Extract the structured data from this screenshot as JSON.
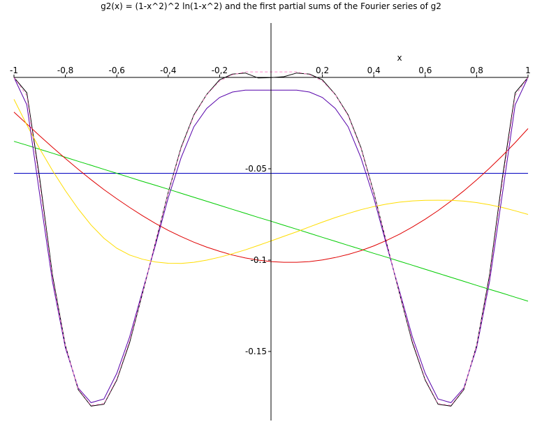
{
  "chart_data": {
    "type": "line",
    "title": "g2(x) = (1-x^2)^2 ln(1-x^2) and the first partial sums of the Fourier series of g2",
    "xlabel": "x",
    "ylabel": "",
    "xlim": [
      -1,
      1
    ],
    "ylim": [
      -0.185,
      0.02
    ],
    "grid": false,
    "x_ticks": [
      {
        "value": -1,
        "label": "-1"
      },
      {
        "value": -0.8,
        "label": "-0,8"
      },
      {
        "value": -0.6,
        "label": "-0,6"
      },
      {
        "value": -0.4,
        "label": "-0,4"
      },
      {
        "value": -0.2,
        "label": "-0,2"
      },
      {
        "value": 0.2,
        "label": "0,2"
      },
      {
        "value": 0.4,
        "label": "0,4"
      },
      {
        "value": 0.6,
        "label": "0,6"
      },
      {
        "value": 0.8,
        "label": "0,8"
      },
      {
        "value": 1,
        "label": "1"
      }
    ],
    "y_ticks": [
      {
        "value": -0.05,
        "label": "-0.05"
      },
      {
        "value": -0.1,
        "label": "-0.1"
      },
      {
        "value": -0.15,
        "label": "-0.15"
      }
    ],
    "x": [
      -1,
      -0.95,
      -0.9,
      -0.85,
      -0.8,
      -0.75,
      -0.7,
      -0.65,
      -0.6,
      -0.55,
      -0.5,
      -0.45,
      -0.4,
      -0.35,
      -0.3,
      -0.25,
      -0.2,
      -0.15,
      -0.1,
      -0.05,
      0,
      0.05,
      0.1,
      0.15,
      0.2,
      0.25,
      0.3,
      0.35,
      0.4,
      0.45,
      0.5,
      0.55,
      0.6,
      0.65,
      0.7,
      0.75,
      0.8,
      0.85,
      0.9,
      0.95,
      1
    ],
    "series": [
      {
        "color": "#000000",
        "dash": "",
        "values": [
          0.0,
          -0.0084,
          -0.0551,
          -0.1084,
          -0.1467,
          -0.1709,
          -0.1799,
          -0.1789,
          -0.1657,
          -0.1451,
          -0.1183,
          -0.0908,
          -0.0631,
          -0.0384,
          -0.0205,
          -0.0093,
          -0.0013,
          0.0018,
          0.0024,
          -0.0003,
          -0.0001,
          0.0004,
          0.0024,
          0.0018,
          -0.0013,
          -0.0093,
          -0.0205,
          -0.0384,
          -0.0631,
          -0.0908,
          -0.1183,
          -0.1451,
          -0.1657,
          -0.1789,
          -0.1799,
          -0.1709,
          -0.1467,
          -0.1084,
          -0.0551,
          -0.0084,
          0.0
        ]
      },
      {
        "color": "#0000c0",
        "dash": "",
        "values": [
          -0.0525,
          -0.0525,
          -0.0525,
          -0.0525,
          -0.0525,
          -0.0525,
          -0.0525,
          -0.0525,
          -0.0525,
          -0.0525,
          -0.0525,
          -0.0525,
          -0.0525,
          -0.0525,
          -0.0525,
          -0.0525,
          -0.0525,
          -0.0525,
          -0.0525,
          -0.0525,
          -0.0525,
          -0.0525,
          -0.0525,
          -0.0525,
          -0.0525,
          -0.0525,
          -0.0525,
          -0.0525,
          -0.0525,
          -0.0525,
          -0.0525,
          -0.0525,
          -0.0525,
          -0.0525,
          -0.0525,
          -0.0525,
          -0.0525,
          -0.0525,
          -0.0525,
          -0.0525,
          -0.0525
        ]
      },
      {
        "color": "#00cc00",
        "dash": "",
        "values": [
          -0.035,
          -0.0371,
          -0.0393,
          -0.0415,
          -0.0437,
          -0.0459,
          -0.0481,
          -0.0503,
          -0.0525,
          -0.0547,
          -0.0569,
          -0.059,
          -0.0612,
          -0.0634,
          -0.0656,
          -0.0678,
          -0.07,
          -0.0722,
          -0.0744,
          -0.0766,
          -0.0787,
          -0.0809,
          -0.0831,
          -0.0853,
          -0.0875,
          -0.0897,
          -0.0919,
          -0.0941,
          -0.0963,
          -0.0984,
          -0.1006,
          -0.1028,
          -0.105,
          -0.1072,
          -0.1094,
          -0.1116,
          -0.1138,
          -0.116,
          -0.1181,
          -0.1203,
          -0.1225
        ]
      },
      {
        "color": "#e00000",
        "dash": "",
        "values": [
          -0.019,
          -0.0255,
          -0.032,
          -0.0383,
          -0.0444,
          -0.0503,
          -0.056,
          -0.0614,
          -0.0664,
          -0.0712,
          -0.0757,
          -0.0799,
          -0.0837,
          -0.0871,
          -0.0902,
          -0.0929,
          -0.0952,
          -0.0972,
          -0.0988,
          -0.1,
          -0.1008,
          -0.1012,
          -0.1012,
          -0.1008,
          -0.0999,
          -0.0986,
          -0.0969,
          -0.0948,
          -0.0922,
          -0.0892,
          -0.0858,
          -0.0819,
          -0.0776,
          -0.0729,
          -0.0677,
          -0.0621,
          -0.0561,
          -0.0497,
          -0.0429,
          -0.0357,
          -0.028
        ]
      },
      {
        "color": "#ffdd00",
        "dash": "",
        "values": [
          -0.012,
          -0.026,
          -0.039,
          -0.051,
          -0.062,
          -0.072,
          -0.0808,
          -0.088,
          -0.0935,
          -0.0972,
          -0.0995,
          -0.101,
          -0.1017,
          -0.1018,
          -0.1012,
          -0.1,
          -0.0984,
          -0.0965,
          -0.0944,
          -0.092,
          -0.0895,
          -0.087,
          -0.0845,
          -0.0818,
          -0.0792,
          -0.0767,
          -0.0745,
          -0.0724,
          -0.0707,
          -0.0693,
          -0.0683,
          -0.0676,
          -0.0673,
          -0.0672,
          -0.0673,
          -0.0677,
          -0.0685,
          -0.0697,
          -0.0712,
          -0.073,
          -0.075
        ]
      },
      {
        "color": "#5500aa",
        "dash": "",
        "values": [
          0.0,
          -0.015,
          -0.064,
          -0.112,
          -0.148,
          -0.17,
          -0.178,
          -0.176,
          -0.162,
          -0.142,
          -0.117,
          -0.092,
          -0.066,
          -0.044,
          -0.027,
          -0.017,
          -0.011,
          -0.008,
          -0.007,
          -0.007,
          -0.007,
          -0.007,
          -0.007,
          -0.008,
          -0.011,
          -0.017,
          -0.027,
          -0.044,
          -0.066,
          -0.092,
          -0.117,
          -0.142,
          -0.162,
          -0.176,
          -0.178,
          -0.17,
          -0.148,
          -0.112,
          -0.064,
          -0.015,
          0.0
        ]
      },
      {
        "color": "#ff88cc",
        "dash": "4,3",
        "values": [
          0.0,
          -0.01,
          -0.058,
          -0.11,
          -0.147,
          -0.1705,
          -0.1795,
          -0.1785,
          -0.165,
          -0.144,
          -0.118,
          -0.0905,
          -0.0635,
          -0.039,
          -0.021,
          -0.0095,
          -0.002,
          0.0015,
          0.003,
          0.003,
          0.003,
          0.003,
          0.003,
          0.0015,
          -0.002,
          -0.0095,
          -0.021,
          -0.039,
          -0.0635,
          -0.0905,
          -0.118,
          -0.144,
          -0.165,
          -0.1785,
          -0.1795,
          -0.1705,
          -0.147,
          -0.11,
          -0.058,
          -0.01,
          0.0
        ]
      }
    ]
  }
}
